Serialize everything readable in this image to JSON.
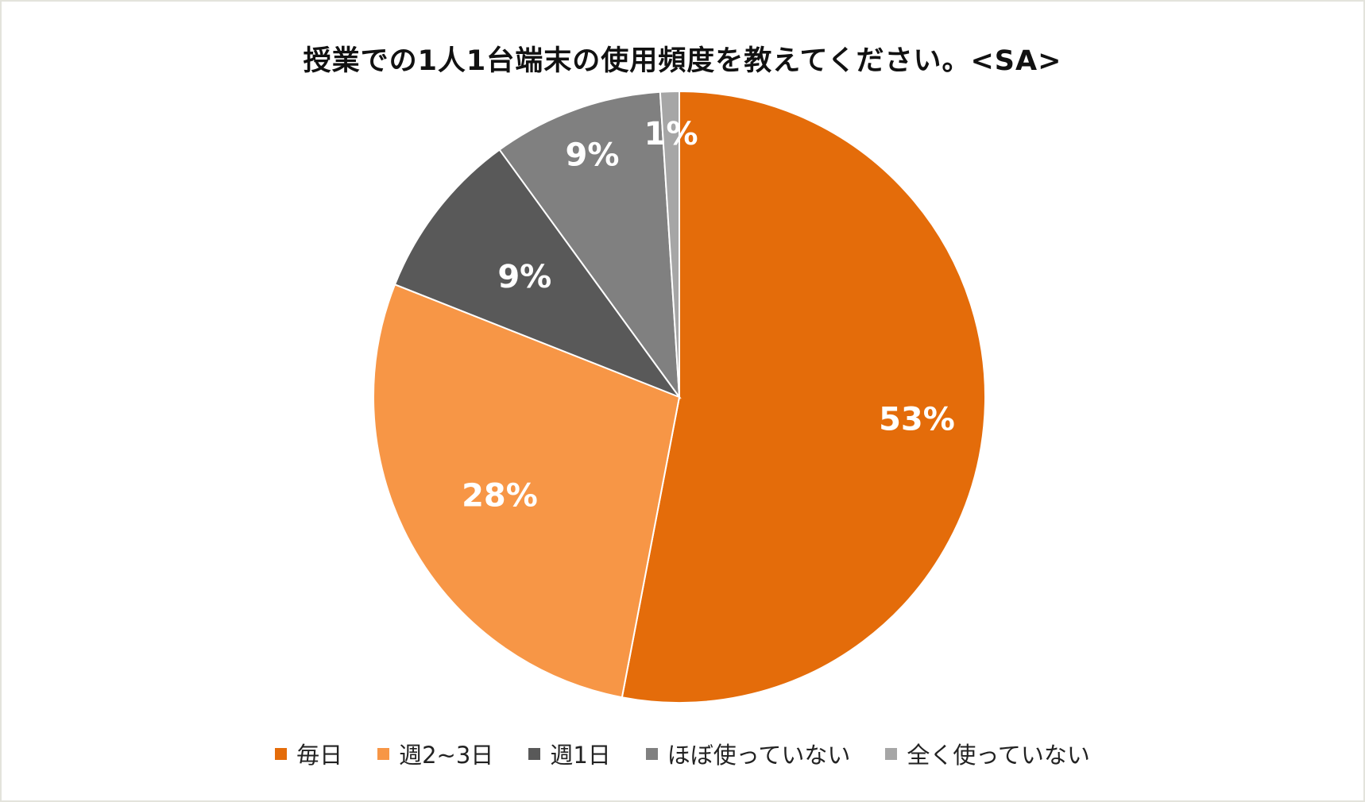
{
  "chart_data": {
    "type": "pie",
    "title": "授業での1人1台端末の使用頻度を教えてください。<SA>",
    "slices": [
      {
        "label": "毎日",
        "value": 53,
        "display": "53%",
        "color": "#e46c0a",
        "label_color": "#ffffff"
      },
      {
        "label": "週2~3日",
        "value": 28,
        "display": "28%",
        "color": "#f79646",
        "label_color": "#ffffff"
      },
      {
        "label": "週1日",
        "value": 9,
        "display": "9%",
        "color": "#595959",
        "label_color": "#ffffff"
      },
      {
        "label": "ほぼ使っていない",
        "value": 9,
        "display": "9%",
        "color": "#808080",
        "label_color": "#ffffff"
      },
      {
        "label": "全く使っていない",
        "value": 1,
        "display": "1%",
        "color": "#a6a6a6",
        "label_color": "#ffffff"
      }
    ],
    "legend_position": "bottom"
  }
}
